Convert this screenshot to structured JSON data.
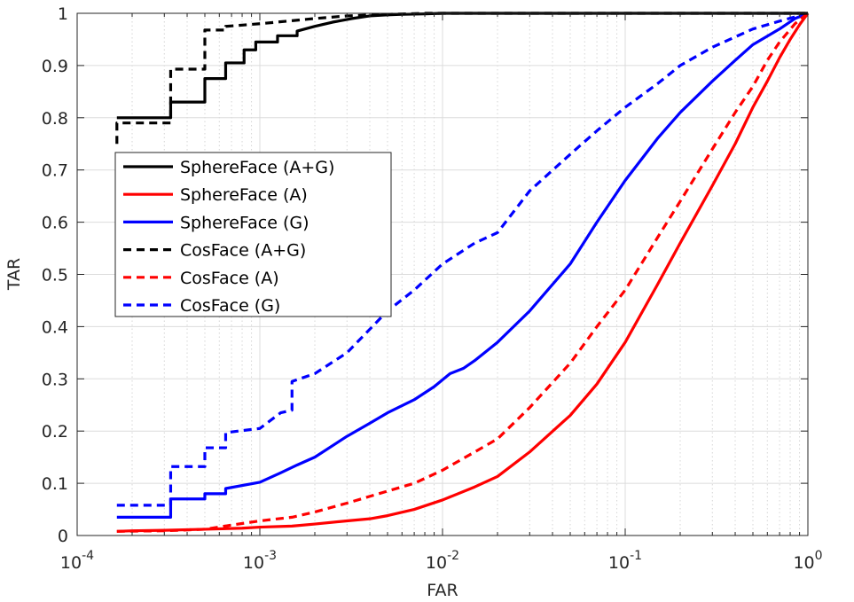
{
  "chart_data": {
    "type": "line",
    "title": "",
    "xlabel": "FAR",
    "ylabel": "TAR",
    "xscale": "log",
    "xlim": [
      0.0001,
      1
    ],
    "ylim": [
      0,
      1
    ],
    "grid": true,
    "legend_position": "middle-left",
    "x_ticks": [
      {
        "value": 0.0001,
        "base": "10",
        "exp": "-4"
      },
      {
        "value": 0.001,
        "base": "10",
        "exp": "-3"
      },
      {
        "value": 0.01,
        "base": "10",
        "exp": "-2"
      },
      {
        "value": 0.1,
        "base": "10",
        "exp": "-1"
      },
      {
        "value": 1,
        "base": "10",
        "exp": "0"
      }
    ],
    "y_ticks": [
      "0",
      "0.1",
      "0.2",
      "0.3",
      "0.4",
      "0.5",
      "0.6",
      "0.7",
      "0.8",
      "0.9",
      "1"
    ],
    "series": [
      {
        "name": "SphereFace (A+G)",
        "color": "#000000",
        "dash": "solid",
        "x": [
          0.000165,
          0.000325,
          0.000325,
          0.0005,
          0.0005,
          0.00065,
          0.00065,
          0.00082,
          0.00082,
          0.00095,
          0.00095,
          0.00125,
          0.00125,
          0.0016,
          0.0016,
          0.002,
          0.0025,
          0.0032,
          0.004,
          0.005,
          0.006,
          0.008,
          0.01,
          0.02,
          0.05,
          0.1,
          0.3,
          1
        ],
        "y": [
          0.8,
          0.8,
          0.83,
          0.83,
          0.875,
          0.875,
          0.905,
          0.905,
          0.93,
          0.93,
          0.945,
          0.945,
          0.957,
          0.957,
          0.966,
          0.975,
          0.983,
          0.99,
          0.995,
          0.997,
          0.998,
          0.999,
          1,
          1,
          1,
          1,
          1,
          1
        ]
      },
      {
        "name": "SphereFace (A)",
        "color": "#ff0000",
        "dash": "solid",
        "x": [
          0.000165,
          0.0002,
          0.0003,
          0.0005,
          0.0008,
          0.001,
          0.0015,
          0.002,
          0.003,
          0.004,
          0.005,
          0.007,
          0.01,
          0.015,
          0.02,
          0.03,
          0.05,
          0.07,
          0.1,
          0.15,
          0.2,
          0.3,
          0.4,
          0.5,
          0.6,
          0.7,
          0.8,
          0.9,
          1
        ],
        "y": [
          0.008,
          0.009,
          0.01,
          0.012,
          0.014,
          0.016,
          0.018,
          0.022,
          0.028,
          0.032,
          0.038,
          0.05,
          0.068,
          0.093,
          0.113,
          0.16,
          0.23,
          0.29,
          0.37,
          0.48,
          0.56,
          0.67,
          0.75,
          0.82,
          0.87,
          0.915,
          0.95,
          0.978,
          1
        ]
      },
      {
        "name": "SphereFace (G)",
        "color": "#0000ff",
        "dash": "solid",
        "x": [
          0.000165,
          0.000325,
          0.000325,
          0.0005,
          0.0005,
          0.00065,
          0.00065,
          0.001,
          0.0013,
          0.0016,
          0.002,
          0.003,
          0.004,
          0.005,
          0.007,
          0.009,
          0.011,
          0.013,
          0.015,
          0.02,
          0.03,
          0.05,
          0.07,
          0.1,
          0.15,
          0.2,
          0.3,
          0.4,
          0.5,
          0.7,
          0.85,
          1
        ],
        "y": [
          0.035,
          0.035,
          0.07,
          0.07,
          0.08,
          0.08,
          0.09,
          0.102,
          0.12,
          0.135,
          0.15,
          0.19,
          0.215,
          0.235,
          0.26,
          0.285,
          0.31,
          0.32,
          0.335,
          0.37,
          0.43,
          0.52,
          0.6,
          0.68,
          0.76,
          0.81,
          0.87,
          0.91,
          0.94,
          0.97,
          0.99,
          1
        ]
      },
      {
        "name": "CosFace (A+G)",
        "color": "#000000",
        "dash": "dashed",
        "x": [
          0.000165,
          0.000165,
          0.000325,
          0.000325,
          0.0005,
          0.0005,
          0.00065,
          0.00065,
          0.001,
          0.002,
          0.003,
          0.005,
          0.008,
          0.01,
          0.1,
          1
        ],
        "y": [
          0.75,
          0.79,
          0.79,
          0.893,
          0.893,
          0.968,
          0.968,
          0.975,
          0.98,
          0.99,
          0.995,
          0.998,
          1,
          1,
          1,
          1
        ]
      },
      {
        "name": "CosFace (A)",
        "color": "#ff0000",
        "dash": "dashed",
        "x": [
          0.000165,
          0.0003,
          0.0005,
          0.0007,
          0.001,
          0.0015,
          0.002,
          0.003,
          0.005,
          0.007,
          0.01,
          0.015,
          0.02,
          0.03,
          0.05,
          0.07,
          0.1,
          0.15,
          0.2,
          0.3,
          0.4,
          0.5,
          0.6,
          0.7,
          0.85,
          1
        ],
        "y": [
          0.008,
          0.009,
          0.012,
          0.02,
          0.028,
          0.035,
          0.045,
          0.062,
          0.085,
          0.1,
          0.125,
          0.16,
          0.185,
          0.245,
          0.33,
          0.4,
          0.47,
          0.57,
          0.64,
          0.74,
          0.81,
          0.86,
          0.91,
          0.945,
          0.98,
          1
        ]
      },
      {
        "name": "CosFace (G)",
        "color": "#0000ff",
        "dash": "dashed",
        "x": [
          0.000165,
          0.000325,
          0.000325,
          0.0005,
          0.0005,
          0.00065,
          0.00065,
          0.001,
          0.0013,
          0.0015,
          0.0015,
          0.002,
          0.003,
          0.005,
          0.007,
          0.01,
          0.015,
          0.02,
          0.03,
          0.05,
          0.07,
          0.1,
          0.15,
          0.2,
          0.3,
          0.5,
          0.7,
          1
        ],
        "y": [
          0.058,
          0.058,
          0.132,
          0.132,
          0.168,
          0.168,
          0.197,
          0.205,
          0.235,
          0.24,
          0.295,
          0.31,
          0.35,
          0.43,
          0.47,
          0.52,
          0.56,
          0.58,
          0.66,
          0.73,
          0.775,
          0.82,
          0.865,
          0.9,
          0.935,
          0.97,
          0.985,
          1
        ]
      }
    ]
  }
}
